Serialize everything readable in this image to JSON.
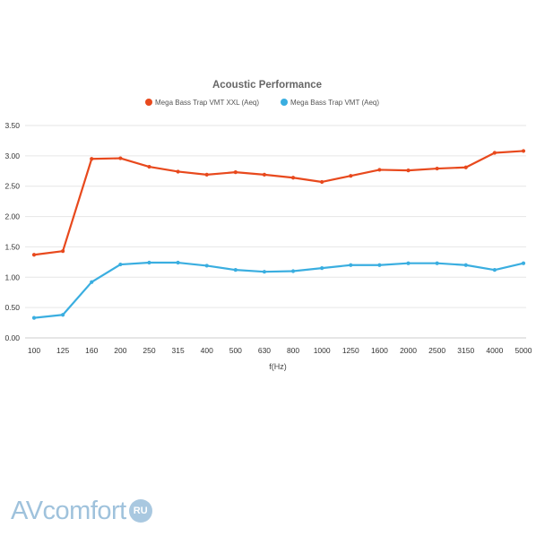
{
  "chart_data": {
    "type": "line",
    "title": "Acoustic Performance",
    "xlabel": "f(Hz)",
    "ylabel": "",
    "ylim": [
      0,
      3.5
    ],
    "yticks": [
      "0.00",
      "0.50",
      "1.00",
      "1.50",
      "2.00",
      "2.50",
      "3.00",
      "3.50"
    ],
    "categories": [
      "100",
      "125",
      "160",
      "200",
      "250",
      "315",
      "400",
      "500",
      "630",
      "800",
      "1000",
      "1250",
      "1600",
      "2000",
      "2500",
      "3150",
      "4000",
      "5000"
    ],
    "legend_position": "top",
    "grid": true,
    "series": [
      {
        "name": "Mega Bass Trap VMT XXL (Aeq)",
        "color": "#e8491d",
        "values": [
          1.37,
          1.43,
          2.95,
          2.96,
          2.82,
          2.74,
          2.69,
          2.73,
          2.69,
          2.64,
          2.57,
          2.67,
          2.77,
          2.76,
          2.79,
          2.81,
          3.05,
          3.08
        ]
      },
      {
        "name": "Mega Bass Trap VMT (Aeq)",
        "color": "#3aaee0",
        "values": [
          0.33,
          0.38,
          0.92,
          1.21,
          1.24,
          1.24,
          1.19,
          1.12,
          1.09,
          1.1,
          1.15,
          1.2,
          1.2,
          1.23,
          1.23,
          1.2,
          1.12,
          1.23
        ]
      }
    ]
  },
  "watermark": {
    "brand_a": "AV",
    "brand_rest": "comfort",
    "brand_badge": "RU"
  }
}
